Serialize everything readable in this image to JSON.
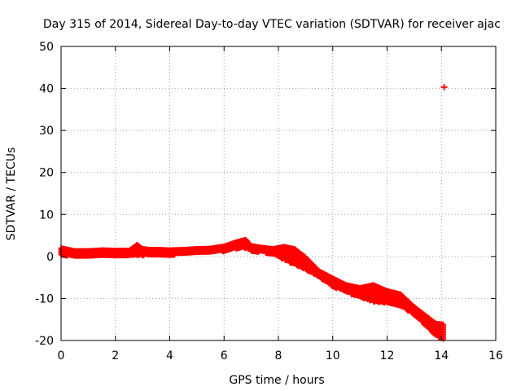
{
  "chart_data": {
    "type": "scatter",
    "title": "Day 315 of 2014, Sidereal Day-to-day VTEC variation (SDTVAR) for receiver ajac",
    "xlabel": "GPS time / hours",
    "ylabel": "SDTVAR / TECUs",
    "xlim": [
      0,
      16
    ],
    "ylim": [
      -20,
      50
    ],
    "xticks": [
      0,
      2,
      4,
      6,
      8,
      10,
      12,
      14,
      16
    ],
    "yticks": [
      -20,
      -10,
      0,
      10,
      20,
      30,
      40,
      50
    ],
    "grid": true,
    "marker_color": "#ff0000",
    "series": [
      {
        "name": "SDTVAR",
        "band": [
          {
            "x": 0.0,
            "lo": 0.2,
            "hi": 2.0
          },
          {
            "x": 0.5,
            "lo": 0.0,
            "hi": 1.3
          },
          {
            "x": 1.0,
            "lo": 0.0,
            "hi": 1.3
          },
          {
            "x": 1.5,
            "lo": 0.2,
            "hi": 1.5
          },
          {
            "x": 2.0,
            "lo": 0.2,
            "hi": 1.4
          },
          {
            "x": 2.5,
            "lo": 0.2,
            "hi": 1.4
          },
          {
            "x": 2.8,
            "lo": 0.2,
            "hi": 2.8
          },
          {
            "x": 3.0,
            "lo": 0.2,
            "hi": 1.8
          },
          {
            "x": 3.3,
            "lo": 0.2,
            "hi": 1.6
          },
          {
            "x": 3.6,
            "lo": 0.3,
            "hi": 1.6
          },
          {
            "x": 4.0,
            "lo": 0.3,
            "hi": 1.5
          },
          {
            "x": 4.5,
            "lo": 0.5,
            "hi": 1.6
          },
          {
            "x": 5.0,
            "lo": 0.8,
            "hi": 1.8
          },
          {
            "x": 5.5,
            "lo": 0.9,
            "hi": 1.9
          },
          {
            "x": 6.0,
            "lo": 1.2,
            "hi": 2.4
          },
          {
            "x": 6.4,
            "lo": 1.8,
            "hi": 3.3
          },
          {
            "x": 6.8,
            "lo": 2.0,
            "hi": 4.0
          },
          {
            "x": 7.0,
            "lo": 1.2,
            "hi": 2.5
          },
          {
            "x": 7.4,
            "lo": 1.0,
            "hi": 2.1
          },
          {
            "x": 7.8,
            "lo": 0.5,
            "hi": 1.8
          },
          {
            "x": 8.2,
            "lo": -0.8,
            "hi": 2.3
          },
          {
            "x": 8.6,
            "lo": -2.0,
            "hi": 1.8
          },
          {
            "x": 9.0,
            "lo": -3.2,
            "hi": -0.2
          },
          {
            "x": 9.5,
            "lo": -5.0,
            "hi": -3.5
          },
          {
            "x": 10.0,
            "lo": -7.2,
            "hi": -5.2
          },
          {
            "x": 10.5,
            "lo": -8.6,
            "hi": -6.8
          },
          {
            "x": 11.0,
            "lo": -9.8,
            "hi": -7.5
          },
          {
            "x": 11.5,
            "lo": -10.8,
            "hi": -6.8
          },
          {
            "x": 12.0,
            "lo": -11.2,
            "hi": -8.2
          },
          {
            "x": 12.5,
            "lo": -11.8,
            "hi": -9.0
          },
          {
            "x": 13.0,
            "lo": -14.0,
            "hi": -12.0
          },
          {
            "x": 13.5,
            "lo": -17.0,
            "hi": -14.5
          },
          {
            "x": 13.8,
            "lo": -19.0,
            "hi": -16.0
          },
          {
            "x": 14.1,
            "lo": -19.8,
            "hi": -16.2
          }
        ],
        "outliers": [
          {
            "x": 14.1,
            "y": 40.3
          }
        ]
      }
    ]
  }
}
